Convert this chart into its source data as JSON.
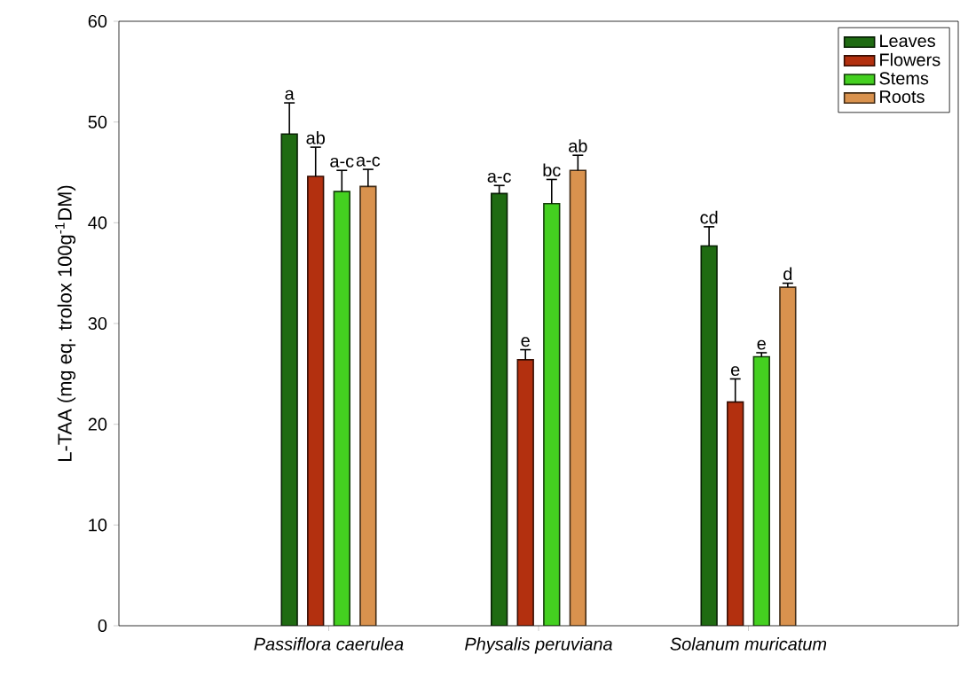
{
  "chart_data": {
    "type": "bar",
    "ylabel": "L-TAA (mg eq. trolox 100g$^{-1}$DM)",
    "categories": [
      "Passiflora caerulea",
      "Physalis peruviana",
      "Solanum muricatum"
    ],
    "series": [
      {
        "name": "Leaves",
        "color": "#1f6b12",
        "values": [
          48.8,
          42.9,
          37.7
        ],
        "errors": [
          3.1,
          0.8,
          1.9
        ],
        "value_labels": [
          "a",
          "a-c",
          "cd"
        ]
      },
      {
        "name": "Flowers",
        "color": "#b3300f",
        "values": [
          44.6,
          26.4,
          22.2
        ],
        "errors": [
          2.9,
          1.0,
          2.3
        ],
        "value_labels": [
          "ab",
          "e",
          "e"
        ]
      },
      {
        "name": "Stems",
        "color": "#44d020",
        "values": [
          43.1,
          41.9,
          26.7
        ],
        "errors": [
          2.1,
          2.4,
          0.4
        ],
        "value_labels": [
          "a-c",
          "bc",
          "e"
        ]
      },
      {
        "name": "Roots",
        "color": "#d9924e",
        "values": [
          43.6,
          45.2,
          33.6
        ],
        "errors": [
          1.7,
          1.5,
          0.4
        ],
        "value_labels": [
          "a-c",
          "ab",
          "d"
        ]
      }
    ],
    "ylim": [
      0,
      60
    ],
    "yticks": [
      0,
      10,
      20,
      30,
      40,
      50,
      60
    ],
    "grid": false,
    "legend": "top right"
  }
}
